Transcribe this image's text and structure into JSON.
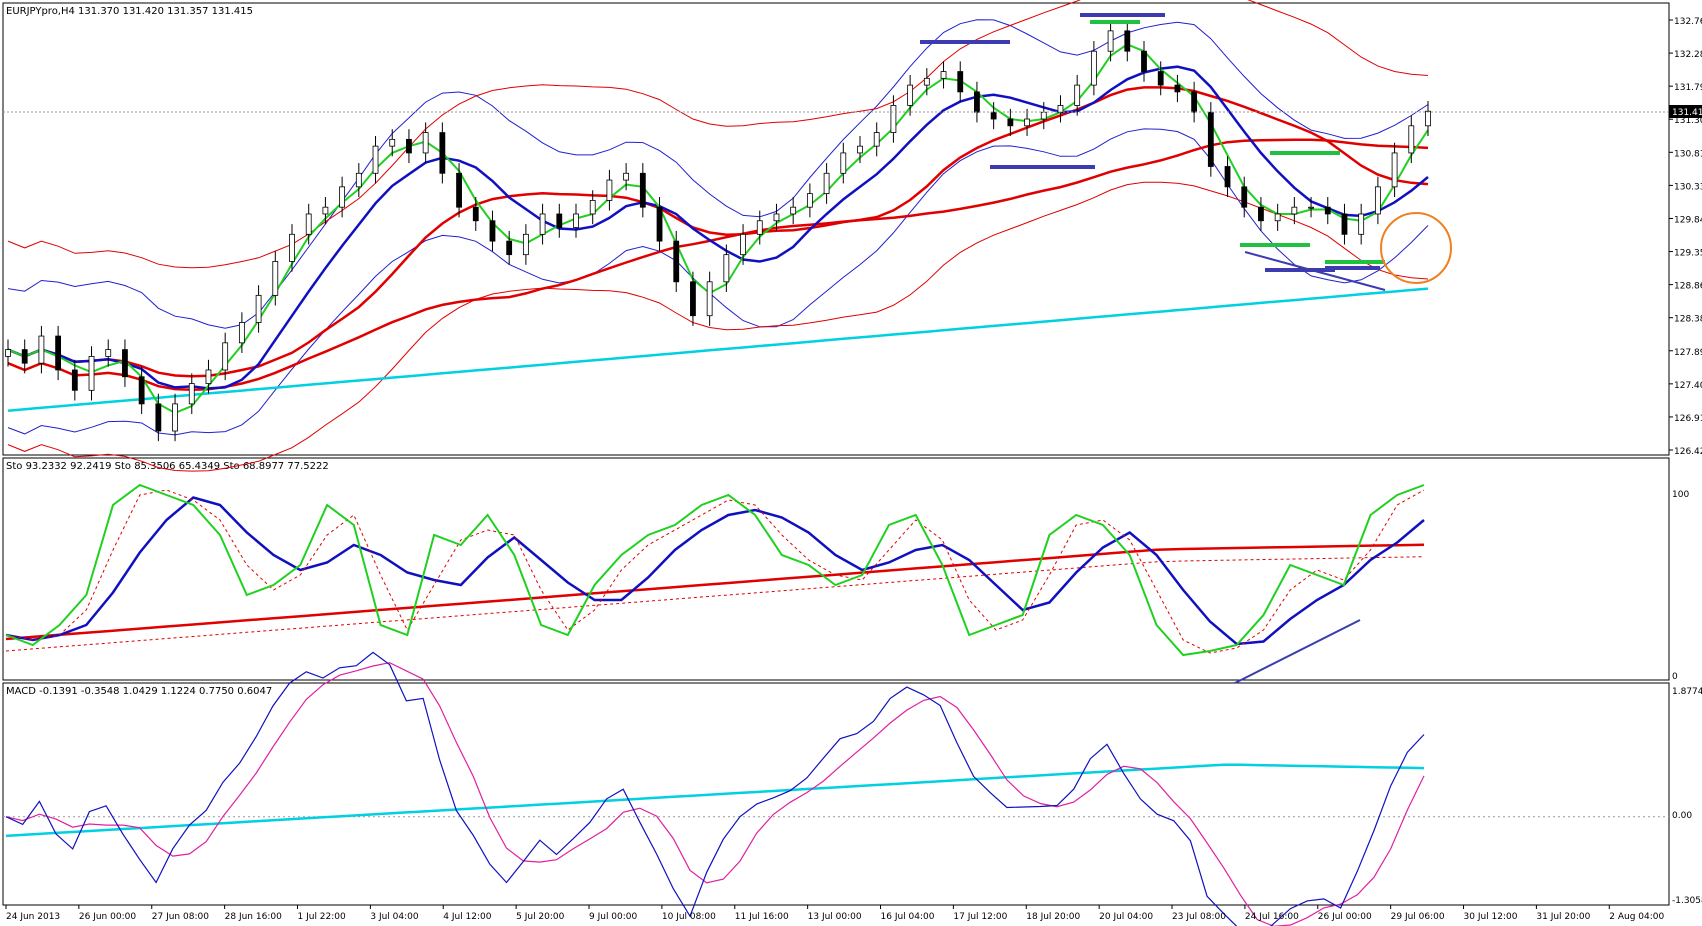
{
  "main": {
    "header": "EURJPYpro,H4  131.370 131.420 131.357 131.415",
    "price_ticks": [
      "132.760",
      "132.280",
      "131.790",
      "131.300",
      "130.810",
      "130.330",
      "129.840",
      "129.350",
      "128.860",
      "128.380",
      "127.890",
      "127.400",
      "126.910",
      "126.420"
    ],
    "current_price": "131.415"
  },
  "stoch": {
    "header": "Sto 93.2332 92.2419  Sto 85.3506 65.4349  Sto 68.8977 77.5222",
    "ticks": [
      "100",
      "0"
    ]
  },
  "macd": {
    "header": "MACD -0.1391 -0.3548 1.0429 1.1224 0.7750 0.6047",
    "ticks": [
      "1.8774",
      "0.00",
      "-1.3058"
    ]
  },
  "time_axis": {
    "labels": [
      "24 Jun 2013",
      "26 Jun 00:00",
      "27 Jun 08:00",
      "28 Jun 16:00",
      "1 Jul 22:00",
      "3 Jul 04:00",
      "4 Jul 12:00",
      "5 Jul 20:00",
      "9 Jul 00:00",
      "10 Jul 08:00",
      "11 Jul 16:00",
      "13 Jul 00:00",
      "16 Jul 04:00",
      "17 Jul 12:00",
      "18 Jul 20:00",
      "20 Jul 04:00",
      "23 Jul 08:00",
      "24 Jul 16:00",
      "26 Jul 00:00",
      "29 Jul 06:00",
      "30 Jul 12:00",
      "31 Jul 20:00",
      "2 Aug 04:00"
    ]
  },
  "chart_data": {
    "type": "line",
    "title": "EURJPYpro,H4",
    "ylim": [
      126.42,
      132.76
    ],
    "current_price": 131.415,
    "ohlc_last": {
      "open": 131.37,
      "high": 131.42,
      "low": 131.357,
      "close": 131.415
    },
    "close_approx": [
      127.9,
      127.7,
      128.1,
      127.6,
      127.3,
      127.8,
      127.9,
      127.5,
      127.1,
      126.7,
      127.1,
      127.4,
      127.6,
      128.0,
      128.3,
      128.7,
      129.2,
      129.6,
      129.9,
      130.0,
      130.3,
      130.5,
      130.9,
      131.0,
      130.8,
      131.1,
      130.5,
      130.0,
      129.8,
      129.5,
      129.3,
      129.6,
      129.9,
      129.7,
      129.9,
      130.1,
      130.4,
      130.5,
      130.0,
      129.5,
      128.9,
      128.4,
      128.9,
      129.3,
      129.6,
      129.8,
      129.9,
      130.0,
      130.2,
      130.5,
      130.8,
      130.9,
      131.1,
      131.5,
      131.8,
      131.9,
      132.0,
      131.7,
      131.4,
      131.3,
      131.2,
      131.3,
      131.4,
      131.5,
      131.8,
      132.3,
      132.6,
      132.3,
      132.0,
      131.8,
      131.7,
      131.4,
      130.6,
      130.3,
      130.0,
      129.8,
      129.9,
      130.0,
      130.0,
      129.9,
      129.6,
      129.9,
      130.3,
      130.8,
      131.2,
      131.415
    ],
    "stoch_fast": [
      20,
      15,
      25,
      40,
      85,
      95,
      90,
      85,
      70,
      40,
      45,
      55,
      85,
      75,
      25,
      20,
      70,
      65,
      80,
      60,
      25,
      20,
      45,
      60,
      70,
      75,
      85,
      90,
      80,
      60,
      55,
      45,
      50,
      75,
      80,
      55,
      20,
      25,
      30,
      70,
      80,
      75,
      60,
      25,
      10,
      12,
      15,
      30,
      55,
      50,
      45,
      80,
      90,
      95
    ],
    "macd_range": [
      -1.3058,
      1.8774
    ]
  }
}
